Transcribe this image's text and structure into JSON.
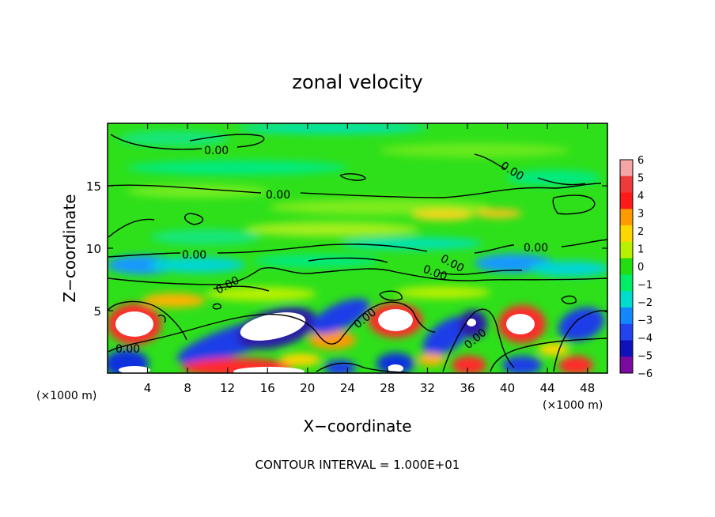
{
  "chart_data": {
    "type": "heatmap",
    "title": "zonal velocity",
    "xlabel": "X−coordinate",
    "ylabel": "Z−coordinate",
    "x_unit_left": "(×1000 m)",
    "x_unit_right": "(×1000 m)",
    "xlim": [
      0,
      50
    ],
    "ylim": [
      0,
      20
    ],
    "x_ticks": [
      4,
      8,
      12,
      16,
      20,
      24,
      28,
      32,
      36,
      40,
      44,
      48
    ],
    "y_ticks": [
      5,
      10,
      15
    ],
    "colorbar": {
      "levels": [
        6,
        5,
        4,
        3,
        2,
        1,
        0,
        -1,
        -2,
        -3,
        -4,
        -5,
        -6
      ],
      "labels": [
        "6",
        "5",
        "4",
        "3",
        "2",
        "1",
        "0",
        "−1",
        "−2",
        "−3",
        "−4",
        "−5",
        "−6"
      ],
      "colors": [
        "#f4a6a6",
        "#ee3a3a",
        "#ff1a1a",
        "#ff9a00",
        "#ffd700",
        "#b7f000",
        "#22dd11",
        "#00ee66",
        "#00ddcc",
        "#1188ff",
        "#2244ee",
        "#1111bb",
        "#7a0aa0"
      ]
    },
    "contour_labels": [
      "0.00",
      "0.00",
      "0.00",
      "0.00",
      "0.00",
      "0.00",
      "0.00",
      "0.00",
      "0.00",
      "0.00",
      "0.00"
    ],
    "footer": "CONTOUR INTERVAL = 1.000E+01"
  }
}
